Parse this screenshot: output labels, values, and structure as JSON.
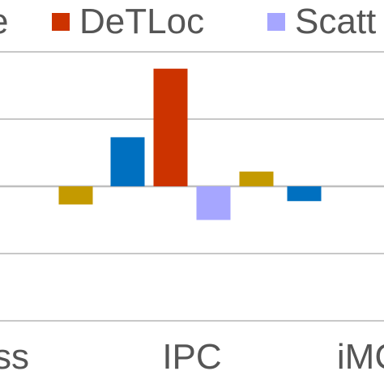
{
  "chart_data": {
    "type": "bar",
    "categories": [
      "ss",
      "IPC",
      "iMC"
    ],
    "series": [
      {
        "name": "",
        "color": "#0070c0",
        "values": [
          null,
          0.73,
          -0.22
        ]
      },
      {
        "name": "DeTLoc",
        "color": "#cc3300",
        "values": [
          null,
          1.75,
          null
        ]
      },
      {
        "name": "Scatt",
        "color": "#a6a6ff",
        "values": [
          null,
          -0.5,
          null
        ]
      },
      {
        "name": "",
        "color": "#c49a00",
        "values": [
          -0.27,
          0.22,
          null
        ]
      }
    ],
    "legend": {
      "placement": "top",
      "entries": [
        {
          "label": "e",
          "color": ""
        },
        {
          "label": "DeTLoc",
          "color": "#cc3300"
        },
        {
          "label": "Scatt",
          "color": "#a6a6ff"
        }
      ]
    },
    "ylim": [
      -2,
      2
    ],
    "gridlines": [
      2,
      1,
      0,
      -1,
      -2
    ],
    "grid": true,
    "title": "",
    "xlabel": "",
    "ylabel": ""
  }
}
